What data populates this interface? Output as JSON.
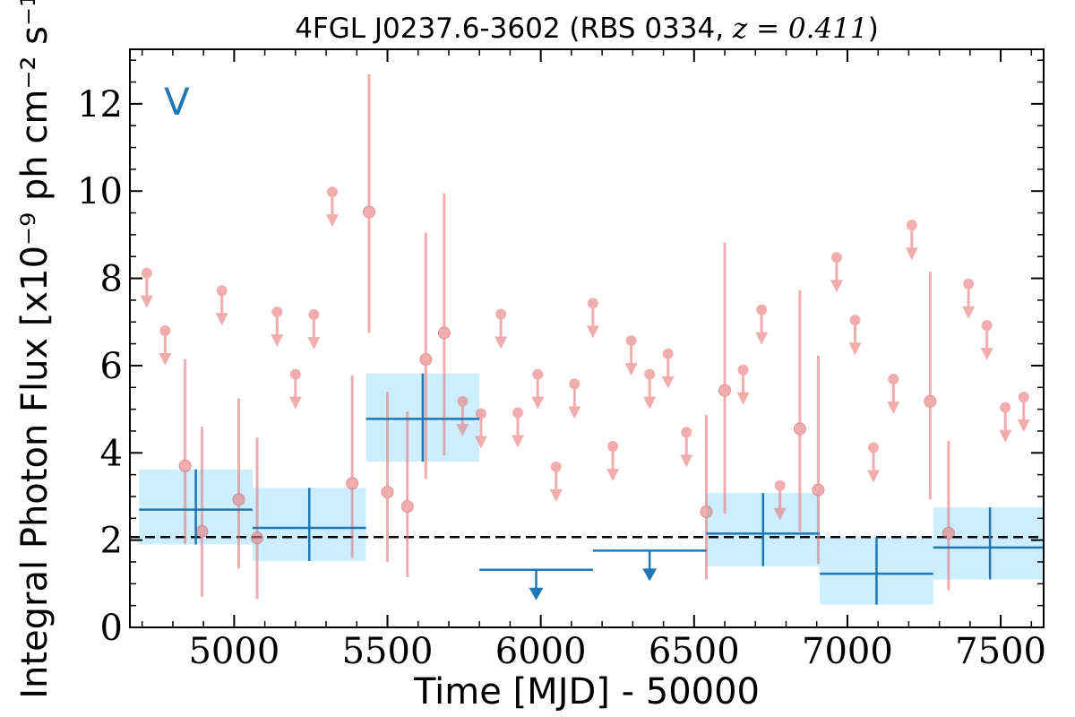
{
  "chart_data": {
    "type": "scatter",
    "title_prefix": "4FGL J0237.6-3602 (RBS 0334, ",
    "title_math": "z = 0.411",
    "title_suffix": ")",
    "xlabel": "Time [MJD] - 50000",
    "ylabel": "Integral Photon Flux [x10⁻⁹ ph cm⁻² s⁻¹]",
    "band_label": "V",
    "xlim": [
      4660,
      7640
    ],
    "ylim": [
      0,
      13.25
    ],
    "x_ticks": [
      5000,
      5500,
      6000,
      6500,
      7000,
      7500
    ],
    "y_ticks": [
      0,
      2,
      4,
      6,
      8,
      10,
      12
    ],
    "reference_level": 2.07,
    "colors": {
      "monthly": "#e8787a",
      "yearly": "#1f77b4",
      "yearly_box": "#cdeeff",
      "reference": "#000000"
    },
    "monthly_detections": [
      {
        "x": 4840,
        "y": 3.7,
        "lo": 1.9,
        "hi": 6.15
      },
      {
        "x": 4895,
        "y": 2.2,
        "lo": 0.7,
        "hi": 4.6
      },
      {
        "x": 5015,
        "y": 2.93,
        "lo": 1.35,
        "hi": 5.25
      },
      {
        "x": 5075,
        "y": 2.05,
        "lo": 0.65,
        "hi": 4.35
      },
      {
        "x": 5385,
        "y": 3.3,
        "lo": 1.6,
        "hi": 5.78
      },
      {
        "x": 5440,
        "y": 9.52,
        "lo": 6.75,
        "hi": 12.68
      },
      {
        "x": 5500,
        "y": 3.1,
        "lo": 1.5,
        "hi": 5.4
      },
      {
        "x": 5565,
        "y": 2.77,
        "lo": 1.15,
        "hi": 4.95
      },
      {
        "x": 5625,
        "y": 6.14,
        "lo": 3.4,
        "hi": 9.05
      },
      {
        "x": 5685,
        "y": 6.75,
        "lo": 3.95,
        "hi": 9.95
      },
      {
        "x": 6600,
        "y": 5.43,
        "lo": 2.6,
        "hi": 8.82
      },
      {
        "x": 6540,
        "y": 2.65,
        "lo": 1.1,
        "hi": 4.87
      },
      {
        "x": 6845,
        "y": 4.55,
        "lo": 2.2,
        "hi": 7.73
      },
      {
        "x": 6905,
        "y": 3.15,
        "lo": 1.45,
        "hi": 6.23
      },
      {
        "x": 7270,
        "y": 5.18,
        "lo": 2.93,
        "hi": 8.15
      },
      {
        "x": 7330,
        "y": 2.16,
        "lo": 0.85,
        "hi": 4.27
      }
    ],
    "monthly_upper_limits": [
      {
        "x": 4715,
        "y": 8.12
      },
      {
        "x": 4775,
        "y": 6.8
      },
      {
        "x": 4960,
        "y": 7.72
      },
      {
        "x": 5140,
        "y": 7.23
      },
      {
        "x": 5200,
        "y": 5.8
      },
      {
        "x": 5260,
        "y": 7.17
      },
      {
        "x": 5320,
        "y": 9.98
      },
      {
        "x": 5745,
        "y": 5.18
      },
      {
        "x": 5805,
        "y": 4.9
      },
      {
        "x": 5870,
        "y": 7.18
      },
      {
        "x": 5925,
        "y": 4.92
      },
      {
        "x": 5990,
        "y": 5.8
      },
      {
        "x": 6050,
        "y": 3.68
      },
      {
        "x": 6110,
        "y": 5.58
      },
      {
        "x": 6170,
        "y": 7.43
      },
      {
        "x": 6235,
        "y": 4.15
      },
      {
        "x": 6295,
        "y": 6.57
      },
      {
        "x": 6355,
        "y": 5.8
      },
      {
        "x": 6415,
        "y": 6.27
      },
      {
        "x": 6475,
        "y": 4.47
      },
      {
        "x": 6660,
        "y": 5.9
      },
      {
        "x": 6720,
        "y": 7.28
      },
      {
        "x": 6780,
        "y": 3.25
      },
      {
        "x": 6965,
        "y": 8.48
      },
      {
        "x": 7025,
        "y": 7.04
      },
      {
        "x": 7085,
        "y": 4.12
      },
      {
        "x": 7150,
        "y": 5.69
      },
      {
        "x": 7210,
        "y": 9.22
      },
      {
        "x": 7395,
        "y": 7.87
      },
      {
        "x": 7455,
        "y": 6.92
      },
      {
        "x": 7515,
        "y": 5.04
      },
      {
        "x": 7575,
        "y": 5.28
      }
    ],
    "yearly_detections": [
      {
        "x0": 4690,
        "x1": 5060,
        "xc": 4875,
        "y": 2.7,
        "lo": 1.9,
        "hi": 3.62
      },
      {
        "x0": 5060,
        "x1": 5430,
        "xc": 5245,
        "y": 2.28,
        "lo": 1.52,
        "hi": 3.2
      },
      {
        "x0": 5430,
        "x1": 5800,
        "xc": 5615,
        "y": 4.78,
        "lo": 3.8,
        "hi": 5.82
      },
      {
        "x0": 6540,
        "x1": 6910,
        "xc": 6725,
        "y": 2.15,
        "lo": 1.4,
        "hi": 3.08
      },
      {
        "x0": 6910,
        "x1": 7280,
        "xc": 7095,
        "y": 1.23,
        "lo": 0.52,
        "hi": 2.07
      },
      {
        "x0": 7280,
        "x1": 7650,
        "xc": 7465,
        "y": 1.83,
        "lo": 1.1,
        "hi": 2.75
      }
    ],
    "yearly_upper_limits": [
      {
        "x0": 5800,
        "x1": 6170,
        "xc": 5985,
        "y": 1.32
      },
      {
        "x0": 6170,
        "x1": 6540,
        "xc": 6355,
        "y": 1.76
      }
    ]
  }
}
